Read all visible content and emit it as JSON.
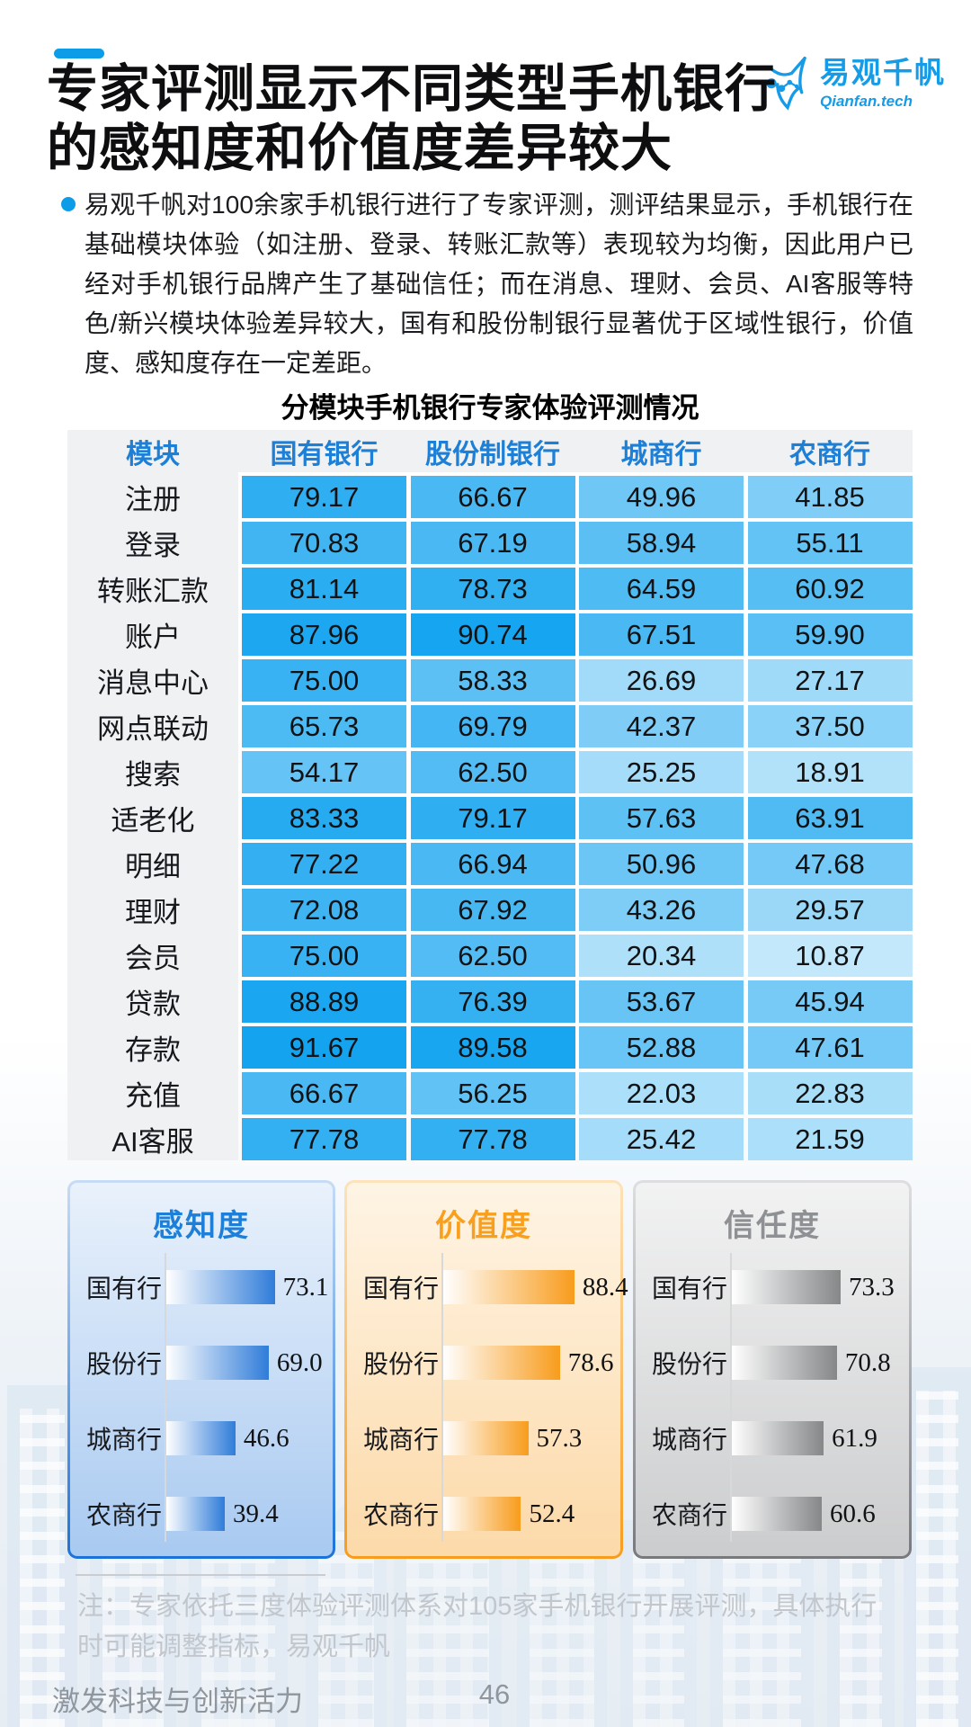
{
  "page": {
    "title_lines": [
      "专家评测显示不同类型手机银行",
      "的感知度和价值度差异较大"
    ],
    "intro": "易观千帆对100余家手机银行进行了专家评测，测评结果显示，手机银行在基础模块体验（如注册、登录、转账汇款等）表现较为均衡，因此用户已经对手机银行品牌产生了基础信任；而在消息、理财、会员、AI客服等特色/新兴模块体验差异较大，国有和股份制银行显著优于区域性银行，价值度、感知度存在一定差距。",
    "note": "注：专家依托三度体验评测体系对105家手机银行开展评测，具体执行时可能调整指标，易观千帆",
    "footer_left": "激发科技与创新活力",
    "page_number": "46"
  },
  "logo": {
    "name": "易观千帆",
    "domain": "Qianfan.tech"
  },
  "colors": {
    "brand_blue": "#149ce8",
    "header_text_blue": "#1e7fd6",
    "table_band_gray": "#f0f1f3"
  },
  "chart_data": [
    {
      "type": "heatmap",
      "title": "分模块手机银行专家体验评测情况",
      "columns": [
        "模块",
        "国有银行",
        "股份制银行",
        "城商行",
        "农商行"
      ],
      "rows": [
        {
          "label": "注册",
          "values": [
            "79.17",
            "66.67",
            "49.96",
            "41.85"
          ]
        },
        {
          "label": "登录",
          "values": [
            "70.83",
            "67.19",
            "58.94",
            "55.11"
          ]
        },
        {
          "label": "转账汇款",
          "values": [
            "81.14",
            "78.73",
            "64.59",
            "60.92"
          ]
        },
        {
          "label": "账户",
          "values": [
            "87.96",
            "90.74",
            "67.51",
            "59.90"
          ]
        },
        {
          "label": "消息中心",
          "values": [
            "75.00",
            "58.33",
            "26.69",
            "27.17"
          ]
        },
        {
          "label": "网点联动",
          "values": [
            "65.73",
            "69.79",
            "42.37",
            "37.50"
          ]
        },
        {
          "label": "搜索",
          "values": [
            "54.17",
            "62.50",
            "25.25",
            "18.91"
          ]
        },
        {
          "label": "适老化",
          "values": [
            "83.33",
            "79.17",
            "57.63",
            "63.91"
          ]
        },
        {
          "label": "明细",
          "values": [
            "77.22",
            "66.94",
            "50.96",
            "47.68"
          ]
        },
        {
          "label": "理财",
          "values": [
            "72.08",
            "67.92",
            "43.26",
            "29.57"
          ]
        },
        {
          "label": "会员",
          "values": [
            "75.00",
            "62.50",
            "20.34",
            "10.87"
          ]
        },
        {
          "label": "贷款",
          "values": [
            "88.89",
            "76.39",
            "53.67",
            "45.94"
          ]
        },
        {
          "label": "存款",
          "values": [
            "91.67",
            "89.58",
            "52.88",
            "47.61"
          ]
        },
        {
          "label": "充值",
          "values": [
            "66.67",
            "56.25",
            "22.03",
            "22.83"
          ]
        },
        {
          "label": "AI客服",
          "values": [
            "77.78",
            "77.78",
            "25.42",
            "21.59"
          ]
        }
      ],
      "color_scale": {
        "low": "#d0edfc",
        "high": "#0da0ef",
        "domain": [
          5,
          95
        ]
      }
    },
    {
      "type": "bar",
      "title": "感知度",
      "categories": [
        "国有行",
        "股份行",
        "城商行",
        "农商行"
      ],
      "values": [
        "73.1",
        "69.0",
        "46.6",
        "39.4"
      ],
      "xlim": [
        0,
        100
      ],
      "accent": "#1e7fd8",
      "bar_color": "#2f7cd9",
      "border_from": "#c7dcf5",
      "border_to": "#1b72d9"
    },
    {
      "type": "bar",
      "title": "价值度",
      "categories": [
        "国有行",
        "股份行",
        "城商行",
        "农商行"
      ],
      "values": [
        "88.4",
        "78.6",
        "57.3",
        "52.4"
      ],
      "xlim": [
        0,
        100
      ],
      "accent": "#f8a01d",
      "bar_color": "#f89c1c",
      "border_from": "#fce3bb",
      "border_to": "#f89c1c"
    },
    {
      "type": "bar",
      "title": "信任度",
      "categories": [
        "国有行",
        "股份行",
        "城商行",
        "农商行"
      ],
      "values": [
        "73.3",
        "70.8",
        "61.9",
        "60.6"
      ],
      "xlim": [
        0,
        100
      ],
      "accent": "#8e9093",
      "bar_color": "#858789",
      "border_from": "#dddee0",
      "border_to": "#77797c"
    }
  ]
}
